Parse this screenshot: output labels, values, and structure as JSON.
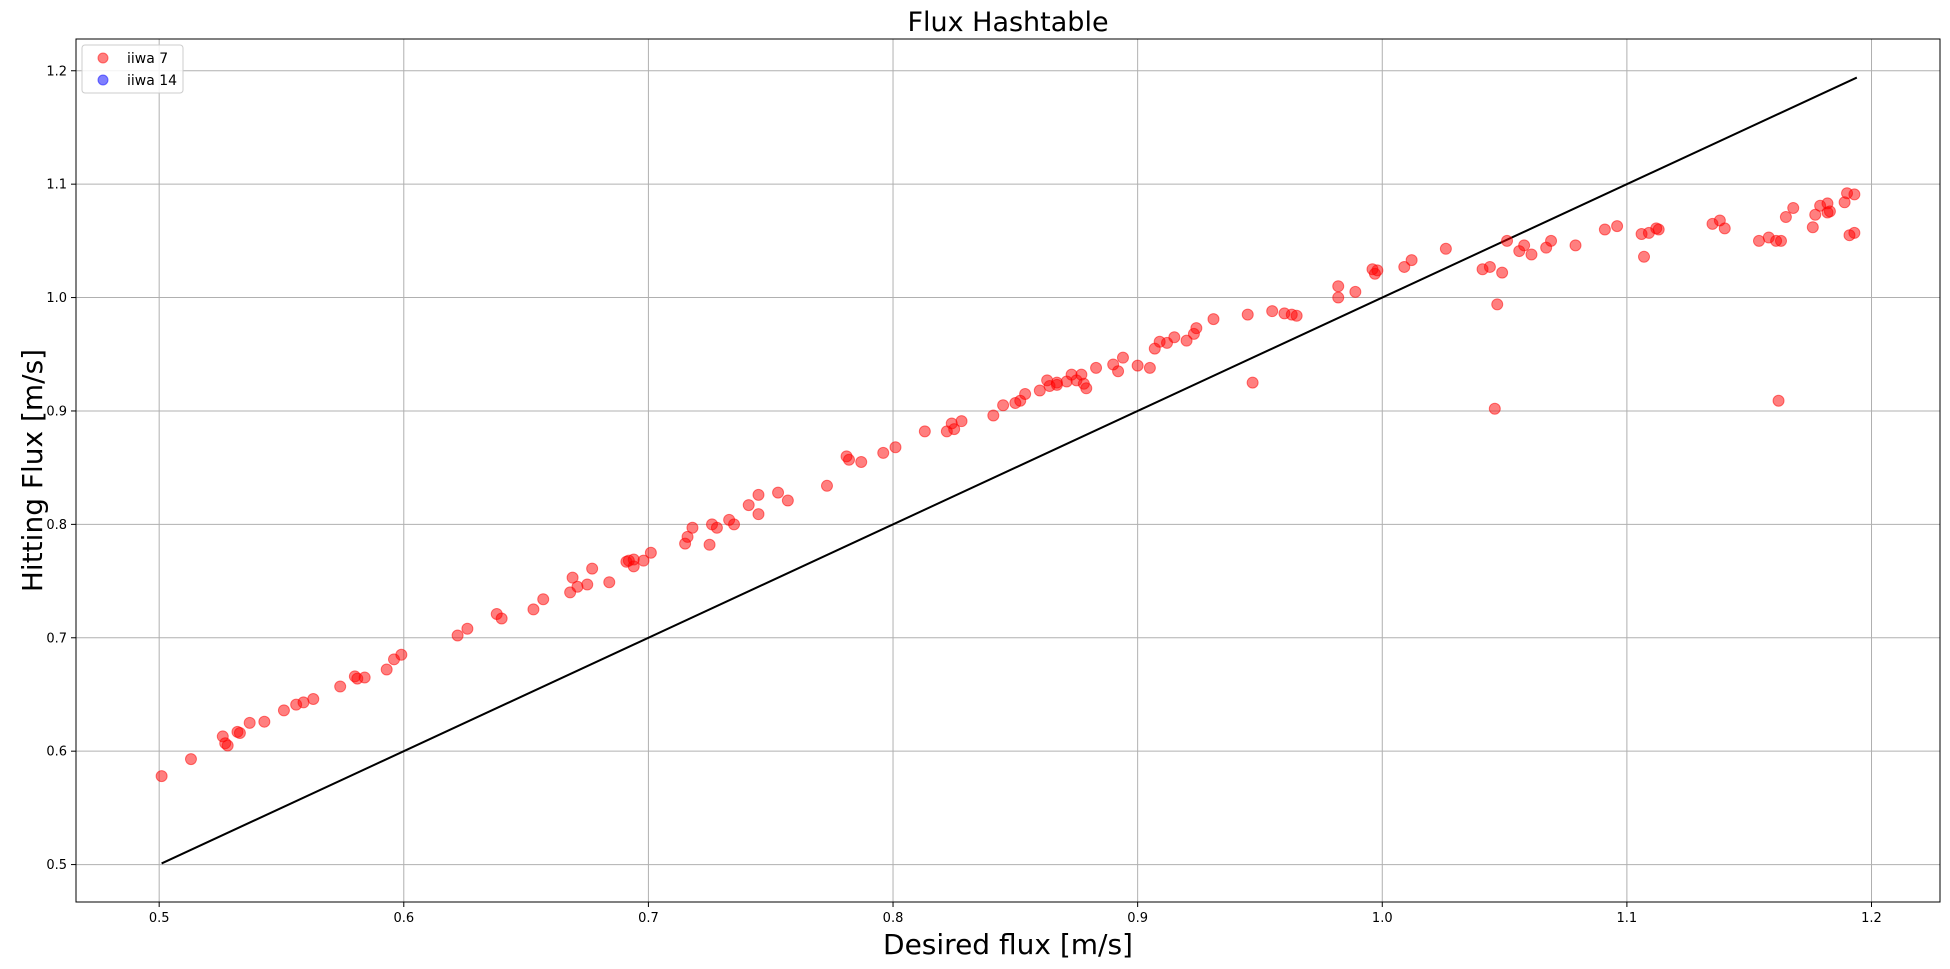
{
  "chart_data": {
    "type": "scatter",
    "title": "Flux Hashtable",
    "xlabel": "Desired flux [m/s]",
    "ylabel": "Hitting Flux [m/s]",
    "xlim": [
      0.466,
      1.228
    ],
    "ylim": [
      0.467,
      1.228
    ],
    "xticks": [
      0.5,
      0.6,
      0.7,
      0.8,
      0.9,
      1.0,
      1.1,
      1.2
    ],
    "yticks": [
      0.5,
      0.6,
      0.7,
      0.8,
      0.9,
      1.0,
      1.1,
      1.2
    ],
    "grid": true,
    "legend_position": "top-left",
    "reference_line": {
      "x": [
        0.501,
        1.194
      ],
      "y": [
        0.501,
        1.194
      ],
      "color": "#000000"
    },
    "series": [
      {
        "name": "iiwa 7",
        "color": "#ff0000",
        "points": [
          [
            0.501,
            0.578
          ],
          [
            0.513,
            0.593
          ],
          [
            0.526,
            0.613
          ],
          [
            0.527,
            0.607
          ],
          [
            0.528,
            0.605
          ],
          [
            0.532,
            0.617
          ],
          [
            0.533,
            0.616
          ],
          [
            0.537,
            0.625
          ],
          [
            0.543,
            0.626
          ],
          [
            0.551,
            0.636
          ],
          [
            0.556,
            0.641
          ],
          [
            0.559,
            0.643
          ],
          [
            0.563,
            0.646
          ],
          [
            0.574,
            0.657
          ],
          [
            0.58,
            0.666
          ],
          [
            0.581,
            0.664
          ],
          [
            0.584,
            0.665
          ],
          [
            0.593,
            0.672
          ],
          [
            0.596,
            0.681
          ],
          [
            0.599,
            0.685
          ],
          [
            0.622,
            0.702
          ],
          [
            0.626,
            0.708
          ],
          [
            0.638,
            0.721
          ],
          [
            0.64,
            0.717
          ],
          [
            0.653,
            0.725
          ],
          [
            0.657,
            0.734
          ],
          [
            0.668,
            0.74
          ],
          [
            0.669,
            0.753
          ],
          [
            0.671,
            0.745
          ],
          [
            0.675,
            0.747
          ],
          [
            0.677,
            0.761
          ],
          [
            0.684,
            0.749
          ],
          [
            0.691,
            0.767
          ],
          [
            0.692,
            0.768
          ],
          [
            0.694,
            0.769
          ],
          [
            0.694,
            0.763
          ],
          [
            0.698,
            0.768
          ],
          [
            0.701,
            0.775
          ],
          [
            0.715,
            0.783
          ],
          [
            0.716,
            0.789
          ],
          [
            0.718,
            0.797
          ],
          [
            0.725,
            0.782
          ],
          [
            0.726,
            0.8
          ],
          [
            0.728,
            0.797
          ],
          [
            0.733,
            0.804
          ],
          [
            0.735,
            0.8
          ],
          [
            0.741,
            0.817
          ],
          [
            0.745,
            0.809
          ],
          [
            0.745,
            0.826
          ],
          [
            0.753,
            0.828
          ],
          [
            0.757,
            0.821
          ],
          [
            0.773,
            0.834
          ],
          [
            0.781,
            0.86
          ],
          [
            0.782,
            0.857
          ],
          [
            0.787,
            0.855
          ],
          [
            0.796,
            0.863
          ],
          [
            0.801,
            0.868
          ],
          [
            0.813,
            0.882
          ],
          [
            0.822,
            0.882
          ],
          [
            0.824,
            0.889
          ],
          [
            0.825,
            0.884
          ],
          [
            0.828,
            0.891
          ],
          [
            0.841,
            0.896
          ],
          [
            0.845,
            0.905
          ],
          [
            0.85,
            0.907
          ],
          [
            0.852,
            0.909
          ],
          [
            0.854,
            0.915
          ],
          [
            0.86,
            0.918
          ],
          [
            0.863,
            0.927
          ],
          [
            0.864,
            0.922
          ],
          [
            0.867,
            0.925
          ],
          [
            0.867,
            0.923
          ],
          [
            0.871,
            0.926
          ],
          [
            0.873,
            0.932
          ],
          [
            0.875,
            0.927
          ],
          [
            0.877,
            0.932
          ],
          [
            0.878,
            0.924
          ],
          [
            0.879,
            0.92
          ],
          [
            0.883,
            0.938
          ],
          [
            0.89,
            0.941
          ],
          [
            0.892,
            0.935
          ],
          [
            0.894,
            0.947
          ],
          [
            0.9,
            0.94
          ],
          [
            0.905,
            0.938
          ],
          [
            0.907,
            0.955
          ],
          [
            0.909,
            0.961
          ],
          [
            0.912,
            0.96
          ],
          [
            0.915,
            0.965
          ],
          [
            0.92,
            0.962
          ],
          [
            0.923,
            0.968
          ],
          [
            0.924,
            0.973
          ],
          [
            0.931,
            0.981
          ],
          [
            0.945,
            0.985
          ],
          [
            0.947,
            0.925
          ],
          [
            0.955,
            0.988
          ],
          [
            0.96,
            0.986
          ],
          [
            0.963,
            0.985
          ],
          [
            0.965,
            0.984
          ],
          [
            0.982,
            1.01
          ],
          [
            0.982,
            1.0
          ],
          [
            0.989,
            1.005
          ],
          [
            0.996,
            1.025
          ],
          [
            0.997,
            1.021
          ],
          [
            0.998,
            1.024
          ],
          [
            1.009,
            1.027
          ],
          [
            1.012,
            1.033
          ],
          [
            1.026,
            1.043
          ],
          [
            1.041,
            1.025
          ],
          [
            1.044,
            1.027
          ],
          [
            1.046,
            0.902
          ],
          [
            1.047,
            0.994
          ],
          [
            1.049,
            1.022
          ],
          [
            1.051,
            1.05
          ],
          [
            1.056,
            1.041
          ],
          [
            1.058,
            1.046
          ],
          [
            1.061,
            1.038
          ],
          [
            1.067,
            1.044
          ],
          [
            1.069,
            1.05
          ],
          [
            1.079,
            1.046
          ],
          [
            1.091,
            1.06
          ],
          [
            1.096,
            1.063
          ],
          [
            1.106,
            1.056
          ],
          [
            1.107,
            1.036
          ],
          [
            1.109,
            1.057
          ],
          [
            1.112,
            1.061
          ],
          [
            1.113,
            1.06
          ],
          [
            1.135,
            1.065
          ],
          [
            1.138,
            1.068
          ],
          [
            1.14,
            1.061
          ],
          [
            1.154,
            1.05
          ],
          [
            1.158,
            1.053
          ],
          [
            1.161,
            1.05
          ],
          [
            1.162,
            0.909
          ],
          [
            1.163,
            1.05
          ],
          [
            1.165,
            1.071
          ],
          [
            1.168,
            1.079
          ],
          [
            1.176,
            1.062
          ],
          [
            1.177,
            1.073
          ],
          [
            1.179,
            1.081
          ],
          [
            1.182,
            1.083
          ],
          [
            1.182,
            1.075
          ],
          [
            1.183,
            1.076
          ],
          [
            1.189,
            1.084
          ],
          [
            1.19,
            1.092
          ],
          [
            1.191,
            1.055
          ],
          [
            1.193,
            1.091
          ],
          [
            1.193,
            1.057
          ]
        ]
      },
      {
        "name": "iiwa 14",
        "color": "#0000ff",
        "points": []
      }
    ]
  }
}
